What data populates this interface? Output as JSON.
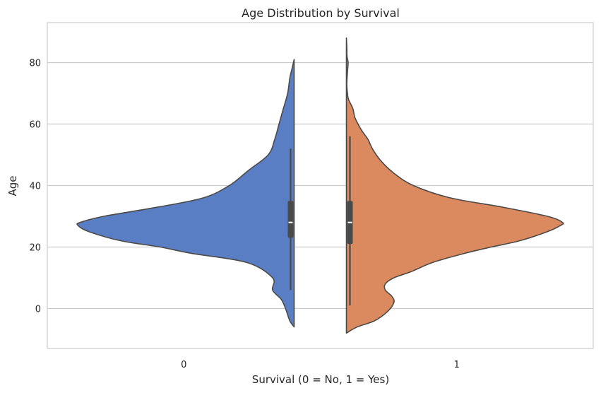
{
  "chart_data": {
    "type": "violin",
    "title": "Age Distribution by Survival",
    "xlabel": "Survival (0 = No, 1 = Yes)",
    "ylabel": "Age",
    "categories": [
      "0",
      "1"
    ],
    "ylim": [
      -13,
      93
    ],
    "yticks": [
      0,
      20,
      40,
      60,
      80
    ],
    "grid": true,
    "split": true,
    "colors": [
      "#5a7ec4",
      "#da8a5e"
    ],
    "series": [
      {
        "category": "0",
        "side": "left",
        "color": "#5a7ec4",
        "profile": [
          [
            -6,
            0.0
          ],
          [
            -4,
            0.02
          ],
          [
            0,
            0.04
          ],
          [
            3,
            0.06
          ],
          [
            6,
            0.1
          ],
          [
            10,
            0.1
          ],
          [
            15,
            0.22
          ],
          [
            18,
            0.48
          ],
          [
            20,
            0.62
          ],
          [
            22,
            0.8
          ],
          [
            25,
            0.95
          ],
          [
            27,
            1.0
          ],
          [
            28,
            0.99
          ],
          [
            30,
            0.88
          ],
          [
            33,
            0.63
          ],
          [
            36,
            0.42
          ],
          [
            40,
            0.3
          ],
          [
            45,
            0.21
          ],
          [
            50,
            0.12
          ],
          [
            55,
            0.09
          ],
          [
            60,
            0.07
          ],
          [
            65,
            0.05
          ],
          [
            70,
            0.03
          ],
          [
            75,
            0.02
          ],
          [
            78,
            0.01
          ],
          [
            81,
            0.0
          ]
        ],
        "box": {
          "q1": 23,
          "median": 28,
          "q3": 35,
          "whisker_low": 6,
          "whisker_high": 52
        }
      },
      {
        "category": "1",
        "side": "right",
        "color": "#da8a5e",
        "profile": [
          [
            -8,
            0.0
          ],
          [
            -6,
            0.05
          ],
          [
            -4,
            0.13
          ],
          [
            -1,
            0.19
          ],
          [
            2,
            0.22
          ],
          [
            4,
            0.21
          ],
          [
            6,
            0.18
          ],
          [
            8,
            0.18
          ],
          [
            10,
            0.22
          ],
          [
            12,
            0.3
          ],
          [
            15,
            0.4
          ],
          [
            18,
            0.55
          ],
          [
            20,
            0.67
          ],
          [
            22,
            0.8
          ],
          [
            25,
            0.93
          ],
          [
            27,
            0.99
          ],
          [
            28,
            1.0
          ],
          [
            30,
            0.93
          ],
          [
            33,
            0.72
          ],
          [
            36,
            0.48
          ],
          [
            40,
            0.31
          ],
          [
            44,
            0.22
          ],
          [
            48,
            0.16
          ],
          [
            52,
            0.12
          ],
          [
            55,
            0.1
          ],
          [
            58,
            0.07
          ],
          [
            62,
            0.04
          ],
          [
            65,
            0.03
          ],
          [
            68,
            0.01
          ],
          [
            70,
            0.005
          ],
          [
            73,
            0.002
          ],
          [
            77,
            0.005
          ],
          [
            80,
            0.008
          ],
          [
            82,
            0.003
          ],
          [
            85,
            0.002
          ],
          [
            88,
            0.0
          ]
        ],
        "box": {
          "q1": 21,
          "median": 28,
          "q3": 35,
          "whisker_low": 1,
          "whisker_high": 56
        }
      }
    ]
  }
}
